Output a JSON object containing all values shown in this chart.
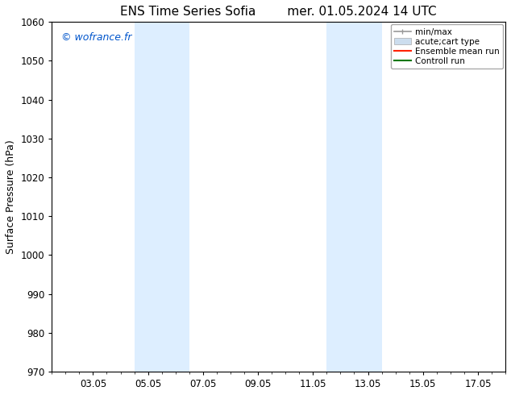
{
  "title_left": "ENS Time Series Sofia",
  "title_right": "mer. 01.05.2024 14 UTC",
  "ylabel": "Surface Pressure (hPa)",
  "ylim": [
    970,
    1060
  ],
  "yticks": [
    970,
    980,
    990,
    1000,
    1010,
    1020,
    1030,
    1040,
    1050,
    1060
  ],
  "xtick_labels": [
    "03.05",
    "05.05",
    "07.05",
    "09.05",
    "11.05",
    "13.05",
    "15.05",
    "17.05"
  ],
  "xtick_positions": [
    2,
    4,
    6,
    8,
    10,
    12,
    14,
    16
  ],
  "xlim": [
    0.5,
    17.0
  ],
  "shade_regions": [
    {
      "xmin": 3.5,
      "xmax": 5.5
    },
    {
      "xmin": 10.5,
      "xmax": 12.5
    }
  ],
  "shade_color": "#ddeeff",
  "bg_color": "#ffffff",
  "watermark_text": "© wofrance.fr",
  "watermark_color": "#0055cc",
  "legend_entries": [
    {
      "label": "min/max",
      "color": "#999999",
      "lw": 1.2,
      "style": "line_with_caps"
    },
    {
      "label": "acute;cart type",
      "color": "#ccddee",
      "lw": 5,
      "style": "thick"
    },
    {
      "label": "Ensemble mean run",
      "color": "#ff2200",
      "lw": 1.5,
      "style": "line"
    },
    {
      "label": "Controll run",
      "color": "#007700",
      "lw": 1.5,
      "style": "line"
    }
  ],
  "title_fontsize": 11,
  "axis_fontsize": 9,
  "tick_fontsize": 8.5,
  "watermark_fontsize": 9,
  "legend_fontsize": 7.5
}
